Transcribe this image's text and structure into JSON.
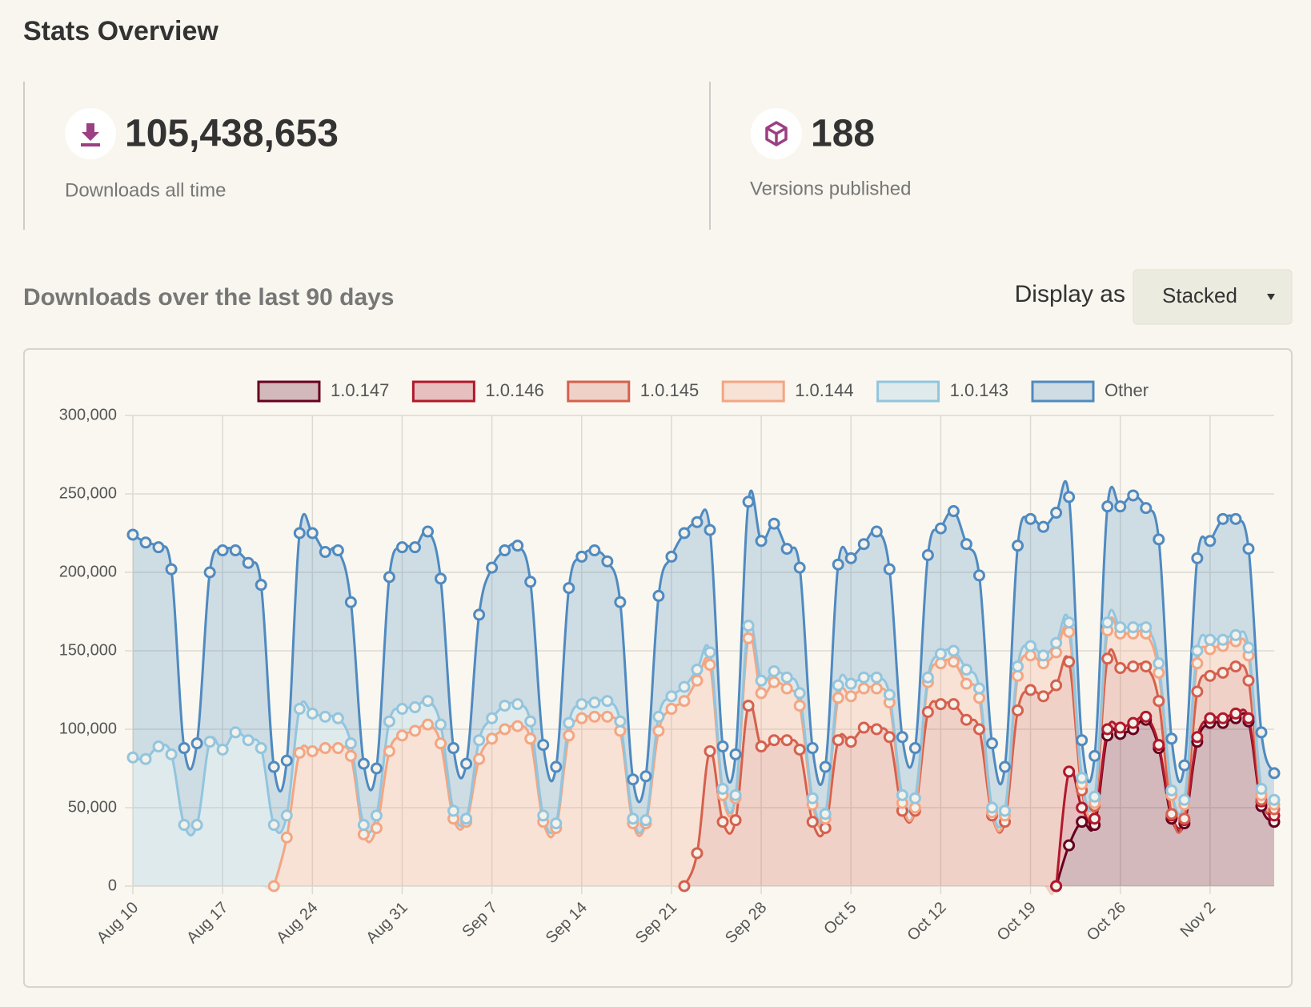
{
  "header": {
    "title": "Stats Overview"
  },
  "stats": [
    {
      "value": "105,438,653",
      "label": "Downloads all time"
    },
    {
      "value": 188,
      "label": "Versions published"
    }
  ],
  "downloads": {
    "title": "Downloads over the last 90 days",
    "display_label": "Display as",
    "display_value": "Stacked"
  },
  "chart_data": {
    "type": "area",
    "stacked": true,
    "grid": true,
    "markers": true,
    "legend": "top",
    "categories": [
      "Aug 10",
      null,
      null,
      null,
      null,
      null,
      null,
      "Aug 17",
      null,
      null,
      null,
      null,
      null,
      null,
      "Aug 24",
      null,
      null,
      null,
      null,
      null,
      null,
      "Aug 31",
      null,
      null,
      null,
      null,
      null,
      null,
      "Sep 7",
      null,
      null,
      null,
      null,
      null,
      null,
      "Sep 14",
      null,
      null,
      null,
      null,
      null,
      null,
      "Sep 21",
      null,
      null,
      null,
      null,
      null,
      null,
      "Sep 28",
      null,
      null,
      null,
      null,
      null,
      null,
      "Oct 5",
      null,
      null,
      null,
      null,
      null,
      null,
      "Oct 12",
      null,
      null,
      null,
      null,
      null,
      null,
      "Oct 19",
      null,
      null,
      null,
      null,
      null,
      null,
      "Oct 26",
      null,
      null,
      null,
      null,
      null,
      null,
      "Nov 2",
      null,
      null,
      null,
      null,
      null
    ],
    "ylim": [
      0,
      300000
    ],
    "yticks": [
      0,
      {
        "value": 50000,
        "label": "50,000"
      },
      {
        "value": 100000,
        "label": "100,000"
      },
      {
        "value": 150000,
        "label": "150,000"
      },
      {
        "value": 200000,
        "label": "200,000"
      },
      {
        "value": 250000,
        "label": "250,000"
      },
      {
        "value": 300000,
        "label": "300,000"
      }
    ],
    "series": [
      {
        "name": "1.0.147",
        "color": "#67001f",
        "values": [
          null,
          null,
          null,
          null,
          null,
          null,
          null,
          null,
          null,
          null,
          null,
          null,
          null,
          null,
          null,
          null,
          null,
          null,
          null,
          null,
          null,
          null,
          null,
          null,
          null,
          null,
          null,
          null,
          null,
          null,
          null,
          null,
          null,
          null,
          null,
          null,
          null,
          null,
          null,
          null,
          null,
          null,
          null,
          null,
          null,
          null,
          null,
          null,
          null,
          null,
          null,
          null,
          null,
          null,
          null,
          null,
          null,
          null,
          null,
          null,
          null,
          null,
          null,
          null,
          null,
          null,
          null,
          null,
          null,
          null,
          null,
          null,
          0,
          26000,
          41000,
          39000,
          96000,
          97000,
          100000,
          106000,
          88000,
          43000,
          40000,
          92000,
          104000,
          104000,
          107000,
          105000,
          51000,
          41000
        ]
      },
      {
        "name": "1.0.146",
        "color": "#b2182b",
        "values": [
          null,
          null,
          null,
          null,
          null,
          null,
          null,
          null,
          null,
          null,
          null,
          null,
          null,
          null,
          null,
          null,
          null,
          null,
          null,
          null,
          null,
          null,
          null,
          null,
          null,
          null,
          null,
          null,
          null,
          null,
          null,
          null,
          null,
          null,
          null,
          null,
          null,
          null,
          null,
          null,
          null,
          null,
          null,
          null,
          null,
          null,
          null,
          null,
          null,
          null,
          null,
          null,
          null,
          null,
          null,
          null,
          null,
          null,
          null,
          null,
          null,
          null,
          null,
          null,
          null,
          null,
          null,
          null,
          null,
          null,
          null,
          null,
          0,
          47000,
          9000,
          4000,
          4000,
          4000,
          4000,
          2000,
          2000,
          2000,
          2000,
          3000,
          3000,
          3000,
          3000,
          2000,
          3000,
          4000
        ]
      },
      {
        "name": "1.0.145",
        "color": "#d6604d",
        "values": [
          null,
          null,
          null,
          null,
          null,
          null,
          null,
          null,
          null,
          null,
          null,
          null,
          null,
          null,
          null,
          null,
          null,
          null,
          null,
          null,
          null,
          null,
          null,
          null,
          null,
          null,
          null,
          null,
          null,
          null,
          null,
          null,
          null,
          null,
          null,
          null,
          null,
          null,
          null,
          null,
          null,
          null,
          null,
          0,
          21000,
          86000,
          41000,
          42000,
          115000,
          89000,
          93000,
          93000,
          87000,
          41000,
          37000,
          93000,
          92000,
          101000,
          100000,
          95000,
          48000,
          48000,
          111000,
          116000,
          116000,
          106000,
          100000,
          45000,
          41000,
          112000,
          125000,
          121000,
          128000,
          70000,
          11000,
          8000,
          45000,
          38000,
          36000,
          32000,
          28000,
          1000,
          1000,
          29000,
          27000,
          29000,
          30000,
          24000,
          1000,
          4000
        ]
      },
      {
        "name": "1.0.144",
        "color": "#f4a582",
        "values": [
          null,
          null,
          null,
          null,
          null,
          null,
          null,
          null,
          null,
          null,
          null,
          0,
          31000,
          85000,
          86000,
          88000,
          88000,
          83000,
          33000,
          37000,
          86000,
          96000,
          99000,
          103000,
          91000,
          43000,
          41000,
          81000,
          94000,
          100000,
          102000,
          94000,
          41000,
          37000,
          96000,
          107000,
          108000,
          108000,
          99000,
          40000,
          40000,
          99000,
          113000,
          118000,
          110000,
          55000,
          17000,
          14000,
          43000,
          34000,
          37000,
          33000,
          28000,
          11000,
          6000,
          27000,
          29000,
          25000,
          26000,
          22000,
          5000,
          2000,
          19000,
          26000,
          27000,
          23000,
          20000,
          2000,
          4000,
          22000,
          22000,
          21000,
          21000,
          19000,
          4000,
          2000,
          18000,
          22000,
          21000,
          21000,
          18000,
          12000,
          9000,
          18000,
          17000,
          17000,
          16000,
          16000,
          3000,
          3000
        ]
      },
      {
        "name": "1.0.143",
        "color": "#92c5de",
        "values": [
          82000,
          81000,
          89000,
          84000,
          39000,
          39000,
          92000,
          87000,
          98000,
          93000,
          88000,
          39000,
          14000,
          28000,
          24000,
          20000,
          19000,
          8000,
          6000,
          8000,
          19000,
          17000,
          15000,
          15000,
          12000,
          5000,
          2000,
          12000,
          13000,
          15000,
          14000,
          11000,
          4000,
          3000,
          8000,
          9000,
          9000,
          10000,
          6000,
          3000,
          2000,
          9000,
          8000,
          9000,
          7000,
          8000,
          4000,
          2000,
          8000,
          8000,
          7000,
          7000,
          8000,
          4000,
          3000,
          8000,
          8000,
          7000,
          7000,
          5000,
          5000,
          6000,
          3000,
          6000,
          7000,
          9000,
          6000,
          3000,
          3000,
          6000,
          6000,
          5000,
          6000,
          6000,
          4000,
          4000,
          5000,
          4000,
          4000,
          4000,
          6000,
          3000,
          3000,
          8000,
          6000,
          4000,
          4000,
          5000,
          4000,
          3000
        ]
      },
      {
        "name": "Other",
        "color": "#4f8ac0",
        "values": [
          142000,
          138000,
          127000,
          118000,
          49000,
          52000,
          108000,
          127000,
          116000,
          113000,
          104000,
          37000,
          35000,
          112000,
          115000,
          105000,
          107000,
          90000,
          39000,
          30000,
          92000,
          103000,
          102000,
          108000,
          93000,
          40000,
          35000,
          80000,
          96000,
          99000,
          101000,
          89000,
          45000,
          36000,
          86000,
          94000,
          97000,
          89000,
          76000,
          25000,
          28000,
          77000,
          89000,
          98000,
          94000,
          78000,
          27000,
          26000,
          79000,
          89000,
          94000,
          82000,
          80000,
          32000,
          30000,
          77000,
          80000,
          85000,
          93000,
          80000,
          37000,
          32000,
          78000,
          80000,
          89000,
          80000,
          72000,
          41000,
          28000,
          77000,
          81000,
          82000,
          83000,
          80000,
          24000,
          26000,
          74000,
          77000,
          84000,
          76000,
          79000,
          33000,
          22000,
          59000,
          63000,
          77000,
          74000,
          63000,
          36000,
          17000
        ]
      }
    ]
  }
}
